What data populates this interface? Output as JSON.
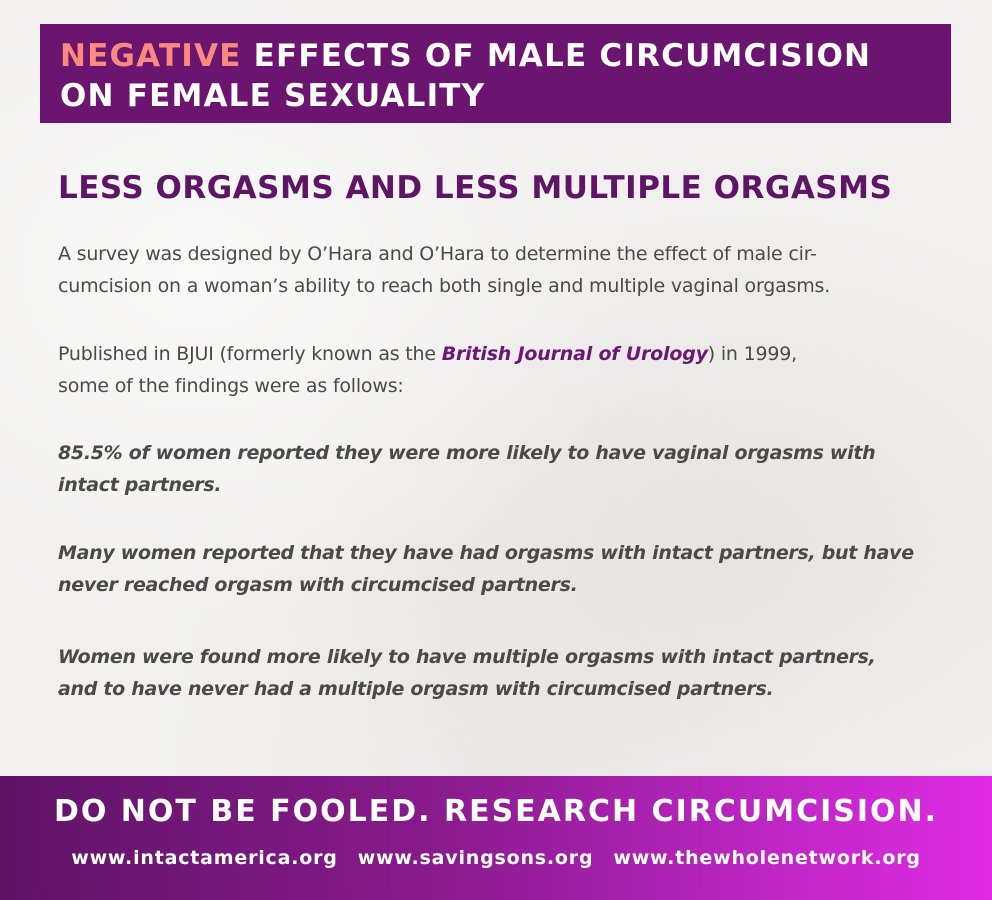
{
  "title": {
    "accent_word": "NEGATIVE",
    "line1_rest": " EFFECTS OF MALE CIRCUMCISION",
    "line2": "ON FEMALE SEXUALITY"
  },
  "section_heading": "LESS ORGASMS AND LESS MULTIPLE ORGASMS",
  "paragraph1": {
    "line1": "A survey was designed by O’Hara and O’Hara to determine the effect of male cir-",
    "line2": "cumcision on a woman’s ability to reach both single and multiple vaginal orgasms."
  },
  "paragraph2": {
    "before": "Published in BJUI (formerly known as the ",
    "journal": "British Journal of Urology",
    "after": ") in 1999,",
    "line2": "some of the findings were as follows:"
  },
  "findings": [
    {
      "line1": "85.5% of women reported they were more likely to have vaginal orgasms with",
      "line2": "intact partners."
    },
    {
      "line1": "Many women reported that they have had orgasms with intact partners, but have",
      "line2": "never reached orgasm with circumcised partners."
    },
    {
      "line1": "Women were found more likely to have multiple orgasms with intact partners,",
      "line2": "and to have never had a multiple orgasm with circumcised partners."
    }
  ],
  "footer": {
    "slogan": "DO NOT BE FOOLED. RESEARCH CIRCUMCISION.",
    "links": [
      "www.intactamerica.org",
      "www.savingsons.org",
      "www.thewholenetwork.org"
    ]
  },
  "colors": {
    "banner": "#6b1470",
    "accent": "#fa8a7e",
    "heading": "#5e1566",
    "body_text": "#4a4a4a",
    "footer_gradient_start": "#5f1466",
    "footer_gradient_end": "#e02be4"
  }
}
